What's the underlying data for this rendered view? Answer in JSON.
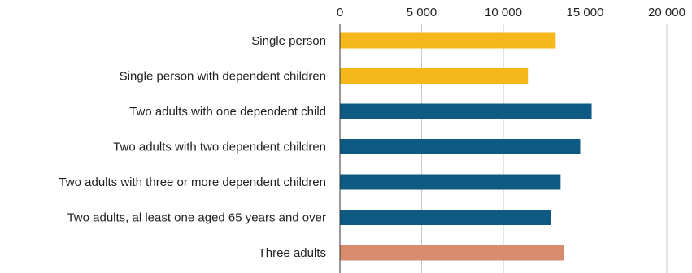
{
  "chart_data": {
    "type": "bar",
    "orientation": "horizontal",
    "categories": [
      "Single person",
      "Single person with dependent children",
      "Two adults with one dependent child",
      "Two adults with two dependent children",
      "Two adults with three or more dependent children",
      "Two adults, al least one aged 65 years and over",
      "Three adults"
    ],
    "values": [
      13200,
      11500,
      15400,
      14700,
      13500,
      12900,
      13700
    ],
    "bar_colors": [
      "#f6b71b",
      "#f6b71b",
      "#0e5a82",
      "#0e5a82",
      "#0e5a82",
      "#0e5a82",
      "#d98b6e"
    ],
    "x_ticks": [
      0,
      5000,
      10000,
      15000,
      20000
    ],
    "x_tick_labels": [
      "0",
      "5 000",
      "10 000",
      "15 000",
      "20 000"
    ],
    "xlim": [
      0,
      20000
    ],
    "axis_position": "top",
    "grid": true,
    "legend": "none"
  }
}
